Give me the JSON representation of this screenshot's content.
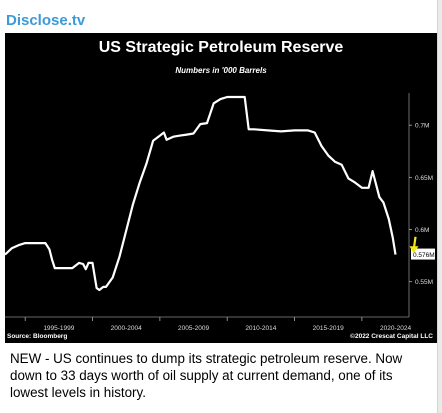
{
  "channel": {
    "name": "Disclose.tv"
  },
  "chart_data": {
    "type": "line",
    "title": "US Strategic Petroleum Reserve",
    "subtitle": "Numbers in '000 Barrels",
    "xlabel": "",
    "ylabel": "",
    "x_tick_labels": [
      "1995-1999",
      "2000-2004",
      "2005-2009",
      "2010-2014",
      "2015-2019",
      "2020-2024"
    ],
    "y_tick_labels": [
      "0.55M",
      "0.6M",
      "0.65M",
      "0.7M"
    ],
    "y_ticks": [
      0.55,
      0.6,
      0.65,
      0.7
    ],
    "ylim": [
      0.52,
      0.75
    ],
    "xlim": [
      1993.5,
      2023.5
    ],
    "last_value_label": "0.576M",
    "line_color": "#ffffff",
    "arrow_color": "#f5e51b",
    "series": [
      {
        "x": [
          1993.5,
          1994.0,
          1994.5,
          1995.0,
          1995.5,
          1996.0,
          1996.5,
          1996.8,
          1997.0,
          1997.2,
          1997.5,
          1998.0,
          1998.5,
          1999.0,
          1999.3,
          1999.5,
          1999.7,
          2000.0,
          2000.3,
          2000.5,
          2000.8,
          2001.0,
          2001.5,
          2002.0,
          2002.5,
          2003.0,
          2003.5,
          2004.0,
          2004.5,
          2005.0,
          2005.3,
          2005.5,
          2006.0,
          2006.5,
          2007.0,
          2007.5,
          2008.0,
          2008.5,
          2009.0,
          2009.5,
          2010.0,
          2010.5,
          2011.0,
          2011.3,
          2011.6,
          2012.0,
          2013.0,
          2014.0,
          2015.0,
          2016.0,
          2016.5,
          2017.0,
          2017.5,
          2018.0,
          2018.5,
          2019.0,
          2019.5,
          2020.0,
          2020.5,
          2020.8,
          2021.0,
          2021.3,
          2021.6,
          2022.0,
          2022.3,
          2022.5
        ],
        "values": [
          0.576,
          0.582,
          0.585,
          0.587,
          0.587,
          0.587,
          0.587,
          0.581,
          0.571,
          0.563,
          0.563,
          0.563,
          0.563,
          0.568,
          0.567,
          0.562,
          0.568,
          0.568,
          0.544,
          0.542,
          0.545,
          0.545,
          0.554,
          0.574,
          0.599,
          0.624,
          0.645,
          0.663,
          0.685,
          0.69,
          0.693,
          0.686,
          0.689,
          0.69,
          0.691,
          0.692,
          0.701,
          0.702,
          0.721,
          0.725,
          0.727,
          0.727,
          0.727,
          0.727,
          0.696,
          0.696,
          0.695,
          0.694,
          0.695,
          0.695,
          0.693,
          0.68,
          0.671,
          0.665,
          0.662,
          0.649,
          0.645,
          0.64,
          0.64,
          0.656,
          0.646,
          0.631,
          0.626,
          0.61,
          0.592,
          0.576
        ]
      }
    ],
    "grid": false,
    "legend": "none"
  },
  "source_label": "Source: Bloomberg",
  "copyright_label": "©2022 Crescat Capital LLC",
  "caption": "NEW - US continues to dump its strategic petroleum reserve. Now down to 33 days worth of oil supply at current demand, one of its lowest levels in history."
}
